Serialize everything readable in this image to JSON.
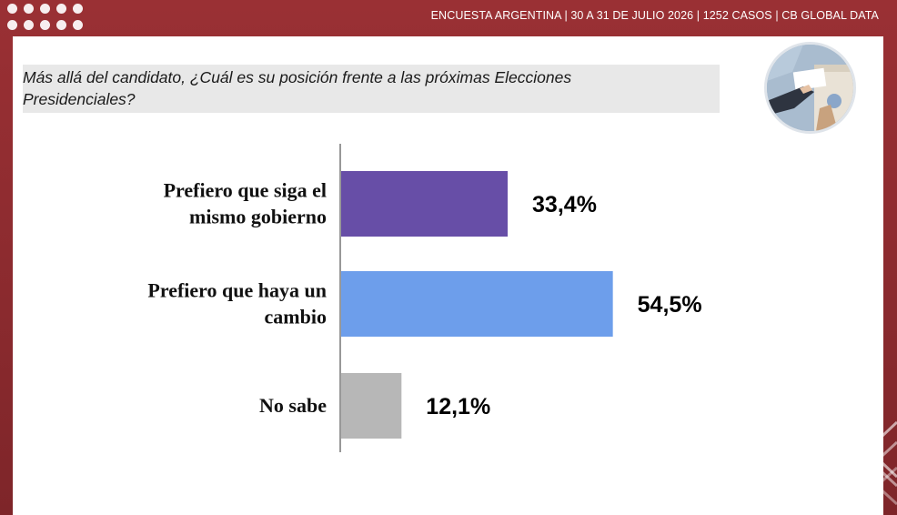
{
  "header": {
    "survey_info": "ENCUESTA ARGENTINA | 30 A 31 DE JULIO 2026 | 1252 CASOS | CB GLOBAL DATA"
  },
  "question": "Más allá del candidato, ¿Cuál es su posición frente a las próximas Elecciones Presidenciales?",
  "photo": {
    "icon": "ballot-box-photo"
  },
  "chart_data": {
    "type": "bar",
    "orientation": "horizontal",
    "categories": [
      [
        "Prefiero que siga el",
        "mismo gobierno"
      ],
      [
        "Prefiero que haya un",
        "cambio"
      ],
      [
        "No sabe"
      ]
    ],
    "values": [
      33.4,
      54.5,
      12.1
    ],
    "value_labels": [
      "33,4%",
      "54,5%",
      "12,1%"
    ],
    "colors": [
      "#674ea7",
      "#6d9eeb",
      "#b7b7b7"
    ],
    "title": "",
    "xlabel": "",
    "ylabel": "",
    "xlim": [
      0,
      100
    ],
    "grid": false,
    "legend": "none"
  }
}
